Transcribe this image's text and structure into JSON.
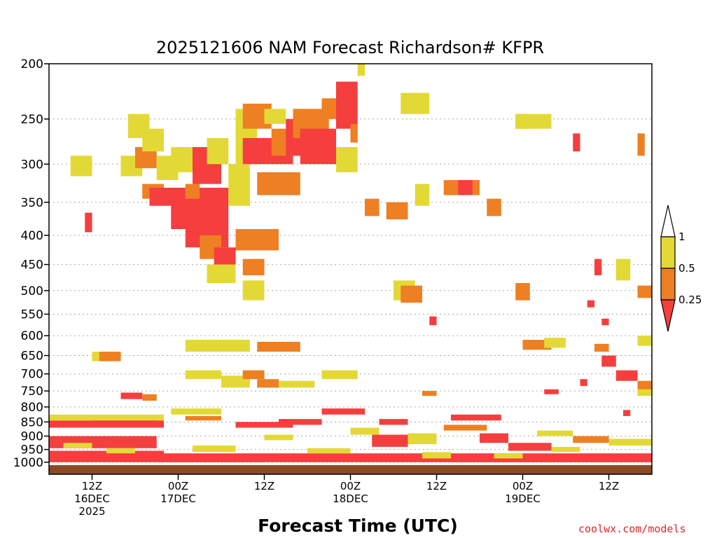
{
  "chart_data": {
    "type": "heatmap",
    "title": "2025121606 NAM Forecast Richardson# KFPR",
    "xlabel": "Forecast Time (UTC)",
    "ylabel": "",
    "y_axis": {
      "scale": "log-pressure (inverted)",
      "range": [
        1050,
        200
      ],
      "ticks": [
        200,
        250,
        300,
        350,
        400,
        450,
        500,
        550,
        600,
        650,
        700,
        750,
        800,
        850,
        900,
        950,
        1000
      ],
      "tick_labels": [
        "200",
        "250",
        "300",
        "350",
        "400",
        "450",
        "500",
        "550",
        "600",
        "650",
        "700",
        "750",
        "800",
        "850",
        "900",
        "950",
        "1000"
      ],
      "grid": true
    },
    "x_axis": {
      "range_hours": [
        0,
        84
      ],
      "ticks": [
        {
          "hour": 6,
          "line1": "12Z",
          "line2": "16DEC",
          "line3": "2025"
        },
        {
          "hour": 18,
          "line1": "00Z",
          "line2": "17DEC",
          "line3": ""
        },
        {
          "hour": 30,
          "line1": "12Z",
          "line2": "",
          "line3": ""
        },
        {
          "hour": 42,
          "line1": "00Z",
          "line2": "18DEC",
          "line3": ""
        },
        {
          "hour": 54,
          "line1": "12Z",
          "line2": "",
          "line3": ""
        },
        {
          "hour": 66,
          "line1": "00Z",
          "line2": "19DEC",
          "line3": ""
        },
        {
          "hour": 78,
          "line1": "12Z",
          "line2": "",
          "line3": ""
        }
      ]
    },
    "legend": {
      "placement": "right",
      "labels": [
        "1",
        "0.5",
        "0.25"
      ],
      "bins": [
        {
          "range": "> 1",
          "color": "#ffffff"
        },
        {
          "range": "0.5 - 1",
          "color": "#e3d936"
        },
        {
          "range": "0.25 - 0.5",
          "color": "#ee7f22"
        },
        {
          "range": "< 0.25",
          "color": "#f53e3e"
        }
      ]
    },
    "regions": [
      {
        "t": [
          3,
          6
        ],
        "p": [
          315,
          290
        ],
        "c": "y"
      },
      {
        "t": [
          10,
          13
        ],
        "p": [
          315,
          290
        ],
        "c": "y"
      },
      {
        "t": [
          11,
          14
        ],
        "p": [
          270,
          245
        ],
        "c": "y"
      },
      {
        "t": [
          12,
          15
        ],
        "p": [
          305,
          280
        ],
        "c": "o"
      },
      {
        "t": [
          13,
          16
        ],
        "p": [
          285,
          260
        ],
        "c": "y"
      },
      {
        "t": [
          13,
          16
        ],
        "p": [
          345,
          325
        ],
        "c": "o"
      },
      {
        "t": [
          14,
          19
        ],
        "p": [
          355,
          330
        ],
        "c": "r"
      },
      {
        "t": [
          15,
          18
        ],
        "p": [
          320,
          290
        ],
        "c": "y"
      },
      {
        "t": [
          17,
          22
        ],
        "p": [
          390,
          335
        ],
        "c": "r"
      },
      {
        "t": [
          17,
          20
        ],
        "p": [
          310,
          280
        ],
        "c": "y"
      },
      {
        "t": [
          19,
          25
        ],
        "p": [
          420,
          330
        ],
        "c": "r"
      },
      {
        "t": [
          19,
          21
        ],
        "p": [
          345,
          325
        ],
        "c": "o"
      },
      {
        "t": [
          20,
          24
        ],
        "p": [
          325,
          280
        ],
        "c": "r"
      },
      {
        "t": [
          22,
          25
        ],
        "p": [
          300,
          270
        ],
        "c": "y"
      },
      {
        "t": [
          21,
          24
        ],
        "p": [
          440,
          400
        ],
        "c": "o"
      },
      {
        "t": [
          23,
          26
        ],
        "p": [
          460,
          420
        ],
        "c": "r"
      },
      {
        "t": [
          22,
          26
        ],
        "p": [
          485,
          450
        ],
        "c": "y"
      },
      {
        "t": [
          25,
          28
        ],
        "p": [
          355,
          300
        ],
        "c": "y"
      },
      {
        "t": [
          26,
          29
        ],
        "p": [
          300,
          240
        ],
        "c": "y"
      },
      {
        "t": [
          26,
          32
        ],
        "p": [
          425,
          390
        ],
        "c": "o"
      },
      {
        "t": [
          27,
          30
        ],
        "p": [
          470,
          440
        ],
        "c": "o"
      },
      {
        "t": [
          27,
          30
        ],
        "p": [
          520,
          480
        ],
        "c": "y"
      },
      {
        "t": [
          27,
          31
        ],
        "p": [
          260,
          235
        ],
        "c": "o"
      },
      {
        "t": [
          27,
          34
        ],
        "p": [
          300,
          270
        ],
        "c": "r"
      },
      {
        "t": [
          29,
          35
        ],
        "p": [
          340,
          310
        ],
        "c": "o"
      },
      {
        "t": [
          30,
          33
        ],
        "p": [
          255,
          240
        ],
        "c": "y"
      },
      {
        "t": [
          31,
          35
        ],
        "p": [
          290,
          260
        ],
        "c": "o"
      },
      {
        "t": [
          33,
          38
        ],
        "p": [
          290,
          250
        ],
        "c": "r"
      },
      {
        "t": [
          34,
          39
        ],
        "p": [
          270,
          240
        ],
        "c": "o"
      },
      {
        "t": [
          35,
          40
        ],
        "p": [
          300,
          260
        ],
        "c": "r"
      },
      {
        "t": [
          38,
          41
        ],
        "p": [
          250,
          230
        ],
        "c": "o"
      },
      {
        "t": [
          40,
          43
        ],
        "p": [
          260,
          215
        ],
        "c": "r"
      },
      {
        "t": [
          40,
          43
        ],
        "p": [
          310,
          280
        ],
        "c": "y"
      },
      {
        "t": [
          43,
          44
        ],
        "p": [
          210,
          200
        ],
        "c": "y"
      },
      {
        "t": [
          42,
          43
        ],
        "p": [
          275,
          255
        ],
        "c": "o"
      },
      {
        "t": [
          44,
          46
        ],
        "p": [
          370,
          345
        ],
        "c": "o"
      },
      {
        "t": [
          47,
          50
        ],
        "p": [
          375,
          350
        ],
        "c": "o"
      },
      {
        "t": [
          48,
          51
        ],
        "p": [
          520,
          480
        ],
        "c": "y"
      },
      {
        "t": [
          49,
          53
        ],
        "p": [
          245,
          225
        ],
        "c": "y"
      },
      {
        "t": [
          49,
          52
        ],
        "p": [
          525,
          490
        ],
        "c": "o"
      },
      {
        "t": [
          51,
          53
        ],
        "p": [
          355,
          325
        ],
        "c": "y"
      },
      {
        "t": [
          55,
          60
        ],
        "p": [
          340,
          320
        ],
        "c": "o"
      },
      {
        "t": [
          57,
          59
        ],
        "p": [
          340,
          320
        ],
        "c": "r"
      },
      {
        "t": [
          61,
          63
        ],
        "p": [
          370,
          345
        ],
        "c": "o"
      },
      {
        "t": [
          65,
          67
        ],
        "p": [
          520,
          485
        ],
        "c": "o"
      },
      {
        "t": [
          65,
          67
        ],
        "p": [
          260,
          245
        ],
        "c": "o"
      },
      {
        "t": [
          65,
          70
        ],
        "p": [
          260,
          245
        ],
        "c": "y"
      },
      {
        "t": [
          73,
          74
        ],
        "p": [
          285,
          265
        ],
        "c": "r"
      },
      {
        "t": [
          76,
          77
        ],
        "p": [
          470,
          440
        ],
        "c": "r"
      },
      {
        "t": [
          79,
          81
        ],
        "p": [
          480,
          440
        ],
        "c": "y"
      },
      {
        "t": [
          82,
          84
        ],
        "p": [
          515,
          490
        ],
        "c": "o"
      },
      {
        "t": [
          82,
          83
        ],
        "p": [
          290,
          265
        ],
        "c": "o"
      },
      {
        "t": [
          82,
          84
        ],
        "p": [
          625,
          600
        ],
        "c": "y"
      },
      {
        "t": [
          5,
          6
        ],
        "p": [
          395,
          365
        ],
        "c": "r"
      },
      {
        "t": [
          6,
          9
        ],
        "p": [
          665,
          640
        ],
        "c": "y"
      },
      {
        "t": [
          7,
          10
        ],
        "p": [
          665,
          640
        ],
        "c": "o"
      },
      {
        "t": [
          10,
          13
        ],
        "p": [
          775,
          755
        ],
        "c": "r"
      },
      {
        "t": [
          13,
          15
        ],
        "p": [
          780,
          760
        ],
        "c": "o"
      },
      {
        "t": [
          19,
          28
        ],
        "p": [
          640,
          610
        ],
        "c": "y"
      },
      {
        "t": [
          29,
          35
        ],
        "p": [
          640,
          615
        ],
        "c": "o"
      },
      {
        "t": [
          19,
          24
        ],
        "p": [
          715,
          690
        ],
        "c": "y"
      },
      {
        "t": [
          24,
          28
        ],
        "p": [
          740,
          705
        ],
        "c": "y"
      },
      {
        "t": [
          27,
          30
        ],
        "p": [
          715,
          690
        ],
        "c": "o"
      },
      {
        "t": [
          29,
          32
        ],
        "p": [
          740,
          715
        ],
        "c": "o"
      },
      {
        "t": [
          32,
          37
        ],
        "p": [
          740,
          720
        ],
        "c": "y"
      },
      {
        "t": [
          38,
          43
        ],
        "p": [
          715,
          690
        ],
        "c": "y"
      },
      {
        "t": [
          52,
          54
        ],
        "p": [
          765,
          750
        ],
        "c": "o"
      },
      {
        "t": [
          66,
          70
        ],
        "p": [
          635,
          610
        ],
        "c": "o"
      },
      {
        "t": [
          69,
          72
        ],
        "p": [
          630,
          605
        ],
        "c": "y"
      },
      {
        "t": [
          69,
          71
        ],
        "p": [
          760,
          745
        ],
        "c": "r"
      },
      {
        "t": [
          74,
          75
        ],
        "p": [
          735,
          715
        ],
        "c": "r"
      },
      {
        "t": [
          76,
          78
        ],
        "p": [
          640,
          620
        ],
        "c": "o"
      },
      {
        "t": [
          77,
          79
        ],
        "p": [
          680,
          650
        ],
        "c": "r"
      },
      {
        "t": [
          79,
          82
        ],
        "p": [
          720,
          690
        ],
        "c": "r"
      },
      {
        "t": [
          82,
          84
        ],
        "p": [
          750,
          720
        ],
        "c": "o"
      },
      {
        "t": [
          82,
          84
        ],
        "p": [
          765,
          745
        ],
        "c": "y"
      },
      {
        "t": [
          53,
          54
        ],
        "p": [
          575,
          555
        ],
        "c": "r"
      },
      {
        "t": [
          77,
          78
        ],
        "p": [
          575,
          560
        ],
        "c": "r"
      },
      {
        "t": [
          75,
          76
        ],
        "p": [
          535,
          520
        ],
        "c": "r"
      },
      {
        "t": [
          80,
          81
        ],
        "p": [
          830,
          810
        ],
        "c": "r"
      },
      {
        "t": [
          0,
          84
        ],
        "p": [
          1000,
          965
        ],
        "c": "r"
      },
      {
        "t": [
          0,
          15
        ],
        "p": [
          945,
          900
        ],
        "c": "r"
      },
      {
        "t": [
          0,
          16
        ],
        "p": [
          980,
          955
        ],
        "c": "r"
      },
      {
        "t": [
          15,
          30
        ],
        "p": [
          1000,
          975
        ],
        "c": "r"
      },
      {
        "t": [
          0,
          16
        ],
        "p": [
          870,
          845
        ],
        "c": "r"
      },
      {
        "t": [
          6,
          15
        ],
        "p": [
          855,
          840
        ],
        "c": "r"
      },
      {
        "t": [
          0,
          16
        ],
        "p": [
          845,
          825
        ],
        "c": "y"
      },
      {
        "t": [
          17,
          24
        ],
        "p": [
          825,
          805
        ],
        "c": "y"
      },
      {
        "t": [
          19,
          24
        ],
        "p": [
          845,
          830
        ],
        "c": "o"
      },
      {
        "t": [
          26,
          34
        ],
        "p": [
          870,
          850
        ],
        "c": "r"
      },
      {
        "t": [
          32,
          38
        ],
        "p": [
          860,
          840
        ],
        "c": "r"
      },
      {
        "t": [
          38,
          44
        ],
        "p": [
          825,
          805
        ],
        "c": "r"
      },
      {
        "t": [
          45,
          50
        ],
        "p": [
          940,
          895
        ],
        "c": "r"
      },
      {
        "t": [
          46,
          50
        ],
        "p": [
          860,
          840
        ],
        "c": "r"
      },
      {
        "t": [
          50,
          54
        ],
        "p": [
          930,
          890
        ],
        "c": "y"
      },
      {
        "t": [
          56,
          63
        ],
        "p": [
          845,
          825
        ],
        "c": "r"
      },
      {
        "t": [
          55,
          61
        ],
        "p": [
          880,
          860
        ],
        "c": "o"
      },
      {
        "t": [
          60,
          64
        ],
        "p": [
          925,
          890
        ],
        "c": "r"
      },
      {
        "t": [
          64,
          70
        ],
        "p": [
          955,
          925
        ],
        "c": "r"
      },
      {
        "t": [
          68,
          73
        ],
        "p": [
          900,
          880
        ],
        "c": "y"
      },
      {
        "t": [
          73,
          78
        ],
        "p": [
          925,
          900
        ],
        "c": "o"
      },
      {
        "t": [
          78,
          84
        ],
        "p": [
          935,
          910
        ],
        "c": "y"
      },
      {
        "t": [
          56,
          84
        ],
        "p": [
          1000,
          975
        ],
        "c": "r"
      },
      {
        "t": [
          2,
          6
        ],
        "p": [
          945,
          925
        ],
        "c": "y"
      },
      {
        "t": [
          8,
          12
        ],
        "p": [
          965,
          945
        ],
        "c": "y"
      },
      {
        "t": [
          20,
          26
        ],
        "p": [
          960,
          935
        ],
        "c": "y"
      },
      {
        "t": [
          30,
          34
        ],
        "p": [
          915,
          895
        ],
        "c": "y"
      },
      {
        "t": [
          36,
          42
        ],
        "p": [
          965,
          945
        ],
        "c": "y"
      },
      {
        "t": [
          42,
          46
        ],
        "p": [
          895,
          870
        ],
        "c": "y"
      },
      {
        "t": [
          52,
          56
        ],
        "p": [
          985,
          960
        ],
        "c": "y"
      },
      {
        "t": [
          62,
          66
        ],
        "p": [
          985,
          965
        ],
        "c": "y"
      },
      {
        "t": [
          70,
          74
        ],
        "p": [
          960,
          940
        ],
        "c": "y"
      }
    ]
  }
}
